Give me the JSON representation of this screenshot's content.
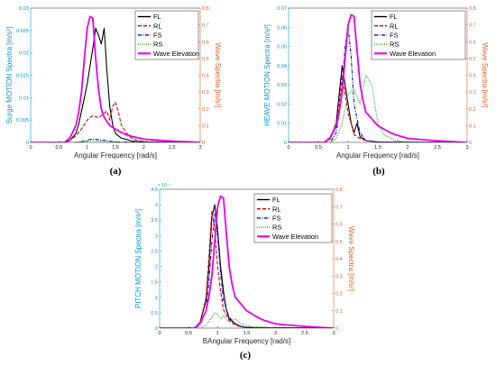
{
  "colors": {
    "FL": "#000000",
    "RL": "#e00000",
    "FS": "#1010c0",
    "RS": "#22aa22",
    "Wave Elevation": "#ee00ee",
    "left_axis": "#0098d8",
    "right_axis": "#e0602a"
  },
  "chart_data": [
    {
      "type": "line",
      "panel_label": "(a)",
      "xlabel": "Angular Frequency [rad/s]",
      "ylabel_left": "Surge MOTION Spectra [m/s²]",
      "ylabel_right": "Wave Spectra [m/s²]",
      "xlim": [
        0,
        3
      ],
      "xticks": [
        "0",
        "0.5",
        "1",
        "1.5",
        "2",
        "2.5",
        "3"
      ],
      "ylim_left": [
        0,
        0.03
      ],
      "yticks_left": [
        "0",
        "0.005",
        "0.01",
        "0.015",
        "0.02",
        "0.025",
        "0.03"
      ],
      "ylim_right": [
        0,
        0.8
      ],
      "yticks_right": [
        "0",
        "0.1",
        "0.2",
        "0.3",
        "0.4",
        "0.5",
        "0.6",
        "0.7",
        "0.8"
      ],
      "legend": [
        "FL",
        "RL",
        "FS",
        "RS",
        "Wave Elevation"
      ],
      "legend_position": "top-right",
      "series": [
        {
          "name": "FL",
          "axis": "left",
          "x": [
            0,
            0.6,
            0.7,
            0.8,
            0.85,
            0.9,
            0.95,
            1.0,
            1.05,
            1.1,
            1.15,
            1.2,
            1.25,
            1.3,
            1.35,
            1.4,
            1.45,
            1.5,
            1.6,
            1.8,
            2.0,
            3.0
          ],
          "y": [
            0,
            0,
            0.0005,
            0.002,
            0.004,
            0.007,
            0.01,
            0.013,
            0.017,
            0.021,
            0.0255,
            0.024,
            0.022,
            0.0255,
            0.016,
            0.008,
            0.004,
            0.002,
            0.001,
            0.0003,
            0.0001,
            0
          ]
        },
        {
          "name": "RL",
          "axis": "left",
          "x": [
            0,
            0.6,
            0.7,
            0.8,
            0.9,
            1.0,
            1.1,
            1.2,
            1.3,
            1.35,
            1.4,
            1.45,
            1.5,
            1.55,
            1.6,
            1.7,
            1.8,
            2.0,
            3.0
          ],
          "y": [
            0,
            0,
            0.0005,
            0.0015,
            0.003,
            0.005,
            0.006,
            0.0055,
            0.0065,
            0.007,
            0.005,
            0.008,
            0.009,
            0.007,
            0.004,
            0.002,
            0.0008,
            0.0002,
            0
          ]
        },
        {
          "name": "FS",
          "axis": "left",
          "x": [
            0,
            0.8,
            0.9,
            1.0,
            1.1,
            1.2,
            1.3,
            1.4,
            1.5,
            3.0
          ],
          "y": [
            0,
            0,
            0.0002,
            0.0005,
            0.0008,
            0.0006,
            0.0005,
            0.0003,
            0.0001,
            0
          ]
        },
        {
          "name": "RS",
          "axis": "left",
          "x": [
            0,
            0.8,
            0.9,
            1.0,
            1.1,
            1.2,
            1.3,
            1.4,
            1.5,
            3.0
          ],
          "y": [
            0,
            0,
            0.0001,
            0.0003,
            0.0004,
            0.0003,
            0.0002,
            0.0001,
            5e-05,
            0
          ]
        },
        {
          "name": "Wave Elevation",
          "axis": "right",
          "x": [
            0,
            0.6,
            0.7,
            0.8,
            0.85,
            0.9,
            0.95,
            1.0,
            1.05,
            1.1,
            1.15,
            1.2,
            1.25,
            1.3,
            1.4,
            1.5,
            1.6,
            1.7,
            1.8,
            1.9,
            2.0,
            2.2,
            2.5,
            2.8,
            3.0
          ],
          "y": [
            0,
            0,
            0.03,
            0.1,
            0.18,
            0.3,
            0.5,
            0.68,
            0.75,
            0.74,
            0.5,
            0.32,
            0.2,
            0.15,
            0.1,
            0.08,
            0.06,
            0.045,
            0.035,
            0.028,
            0.02,
            0.015,
            0.008,
            0.004,
            0
          ]
        }
      ]
    },
    {
      "type": "line",
      "panel_label": "(b)",
      "xlabel": "Angular Frequency [rad/s]",
      "ylabel_left": "HEAVE MOTION Spectra [m/s²]",
      "ylabel_right": "Wave Spectra [m/s²]",
      "xlim": [
        0,
        3
      ],
      "xticks": [
        "0",
        "0.5",
        "1",
        "1.5",
        "2",
        "2.5",
        "3"
      ],
      "ylim_left": [
        0,
        0.07
      ],
      "yticks_left": [
        "0",
        "0.01",
        "0.02",
        "0.03",
        "0.04",
        "0.05",
        "0.06",
        "0.07"
      ],
      "ylim_right": [
        0,
        0.8
      ],
      "yticks_right": [
        "0",
        "0.1",
        "0.2",
        "0.3",
        "0.4",
        "0.5",
        "0.6",
        "0.7",
        "0.8"
      ],
      "legend": [
        "FL",
        "RL",
        "FS",
        "RS",
        "Wave Elevation"
      ],
      "legend_position": "top-right",
      "series": [
        {
          "name": "FL",
          "axis": "left",
          "x": [
            0,
            0.6,
            0.7,
            0.8,
            0.85,
            0.9,
            0.95,
            1.0,
            1.05,
            1.1,
            1.15,
            1.2,
            1.3,
            1.5,
            3.0
          ],
          "y": [
            0,
            0,
            0.002,
            0.01,
            0.025,
            0.04,
            0.03,
            0.02,
            0.01,
            0.005,
            0.01,
            0.003,
            0.001,
            0.0002,
            0
          ]
        },
        {
          "name": "RL",
          "axis": "left",
          "x": [
            0,
            0.6,
            0.7,
            0.8,
            0.85,
            0.9,
            0.95,
            1.0,
            1.05,
            1.1,
            1.2,
            1.3,
            1.5,
            3.0
          ],
          "y": [
            0,
            0,
            0.002,
            0.008,
            0.02,
            0.035,
            0.025,
            0.015,
            0.01,
            0.004,
            0.002,
            0.001,
            0.0002,
            0
          ]
        },
        {
          "name": "FS",
          "axis": "left",
          "x": [
            0,
            0.7,
            0.8,
            0.85,
            0.9,
            0.95,
            1.0,
            1.05,
            1.1,
            1.2,
            1.3,
            1.5,
            3.0
          ],
          "y": [
            0,
            0,
            0.005,
            0.015,
            0.03,
            0.05,
            0.06,
            0.045,
            0.02,
            0.005,
            0.001,
            0.0002,
            0
          ]
        },
        {
          "name": "RS",
          "axis": "left",
          "x": [
            0,
            0.7,
            0.8,
            0.9,
            1.0,
            1.1,
            1.2,
            1.3,
            1.4,
            1.5,
            1.6,
            1.8,
            2.0,
            3.0
          ],
          "y": [
            0,
            0,
            0.002,
            0.01,
            0.025,
            0.028,
            0.02,
            0.035,
            0.03,
            0.01,
            0.004,
            0.001,
            0.0002,
            0
          ]
        },
        {
          "name": "Wave Elevation",
          "axis": "right",
          "x": [
            0,
            0.6,
            0.7,
            0.8,
            0.85,
            0.9,
            0.95,
            1.0,
            1.05,
            1.1,
            1.15,
            1.2,
            1.25,
            1.3,
            1.4,
            1.5,
            1.6,
            1.7,
            1.8,
            1.9,
            2.0,
            2.2,
            2.5,
            2.8,
            3.0
          ],
          "y": [
            0,
            0,
            0.03,
            0.1,
            0.18,
            0.3,
            0.5,
            0.7,
            0.76,
            0.75,
            0.55,
            0.35,
            0.25,
            0.18,
            0.14,
            0.1,
            0.08,
            0.06,
            0.045,
            0.035,
            0.025,
            0.018,
            0.01,
            0.004,
            0
          ]
        }
      ]
    },
    {
      "type": "line",
      "panel_label": "(c)",
      "xlabel": "BAngular Frequency [rad/s]",
      "ylabel_left": "PITCH MOTION Spectra [m/s²]",
      "ylabel_right": "Wave Spectra [m/s²]",
      "y_multiplier_left": "× 10⁻³",
      "xlim": [
        0,
        3
      ],
      "xticks": [
        "0",
        "0.5",
        "1",
        "1.5",
        "2",
        "2.5",
        "3"
      ],
      "ylim_left": [
        0,
        4.5
      ],
      "yticks_left": [
        "0",
        "0.5",
        "1",
        "1.5",
        "2",
        "2.5",
        "3",
        "3.5",
        "4",
        "4.5"
      ],
      "ylim_right": [
        0,
        0.8
      ],
      "yticks_right": [
        "0",
        "0.1",
        "0.2",
        "0.3",
        "0.4",
        "0.5",
        "0.6",
        "0.7",
        "0.8"
      ],
      "legend": [
        "FL",
        "RL",
        "FS",
        "RS",
        "Wave Elevation"
      ],
      "legend_position": "top-right",
      "series": [
        {
          "name": "FL",
          "axis": "left",
          "x": [
            0,
            0.6,
            0.7,
            0.8,
            0.85,
            0.9,
            0.95,
            1.0,
            1.05,
            1.1,
            1.15,
            1.2,
            1.3,
            1.4,
            1.5,
            3.0
          ],
          "y": [
            0,
            0,
            0.2,
            0.9,
            2.0,
            3.6,
            4.0,
            3.2,
            2.0,
            1.2,
            0.6,
            0.3,
            0.15,
            0.05,
            0.02,
            0
          ]
        },
        {
          "name": "RL",
          "axis": "left",
          "x": [
            0,
            0.6,
            0.7,
            0.8,
            0.85,
            0.9,
            0.95,
            1.0,
            1.05,
            1.1,
            1.2,
            1.3,
            1.4,
            1.5,
            3.0
          ],
          "y": [
            0,
            0,
            0.2,
            1.0,
            2.3,
            3.8,
            3.2,
            2.0,
            1.2,
            0.6,
            0.25,
            0.1,
            0.05,
            0.02,
            0
          ]
        },
        {
          "name": "FS",
          "axis": "left",
          "x": [
            0,
            0.6,
            0.7,
            0.8,
            0.85,
            0.9,
            0.95,
            1.0,
            1.05,
            1.1,
            1.2,
            1.3,
            1.4,
            1.5,
            3.0
          ],
          "y": [
            0,
            0,
            0.1,
            0.6,
            1.5,
            2.8,
            3.7,
            3.0,
            1.8,
            0.9,
            0.35,
            0.15,
            0.05,
            0.02,
            0
          ]
        },
        {
          "name": "RS",
          "axis": "left",
          "x": [
            0,
            0.7,
            0.8,
            0.9,
            0.95,
            1.0,
            1.05,
            1.1,
            1.2,
            1.3,
            1.4,
            1.5,
            1.6,
            2.0,
            3.0
          ],
          "y": [
            0,
            0,
            0.1,
            0.35,
            0.5,
            0.45,
            0.3,
            0.4,
            0.2,
            0.3,
            0.15,
            0.08,
            0.04,
            0.01,
            0
          ]
        },
        {
          "name": "Wave Elevation",
          "axis": "right",
          "x": [
            0,
            0.6,
            0.7,
            0.8,
            0.85,
            0.9,
            0.95,
            1.0,
            1.05,
            1.1,
            1.15,
            1.2,
            1.25,
            1.3,
            1.4,
            1.5,
            1.6,
            1.7,
            1.8,
            1.9,
            2.0,
            2.2,
            2.5,
            2.8,
            3.0
          ],
          "y": [
            0,
            0,
            0.03,
            0.1,
            0.18,
            0.3,
            0.5,
            0.7,
            0.76,
            0.75,
            0.55,
            0.35,
            0.25,
            0.18,
            0.14,
            0.1,
            0.08,
            0.06,
            0.045,
            0.035,
            0.025,
            0.018,
            0.01,
            0.004,
            0
          ]
        }
      ]
    }
  ]
}
